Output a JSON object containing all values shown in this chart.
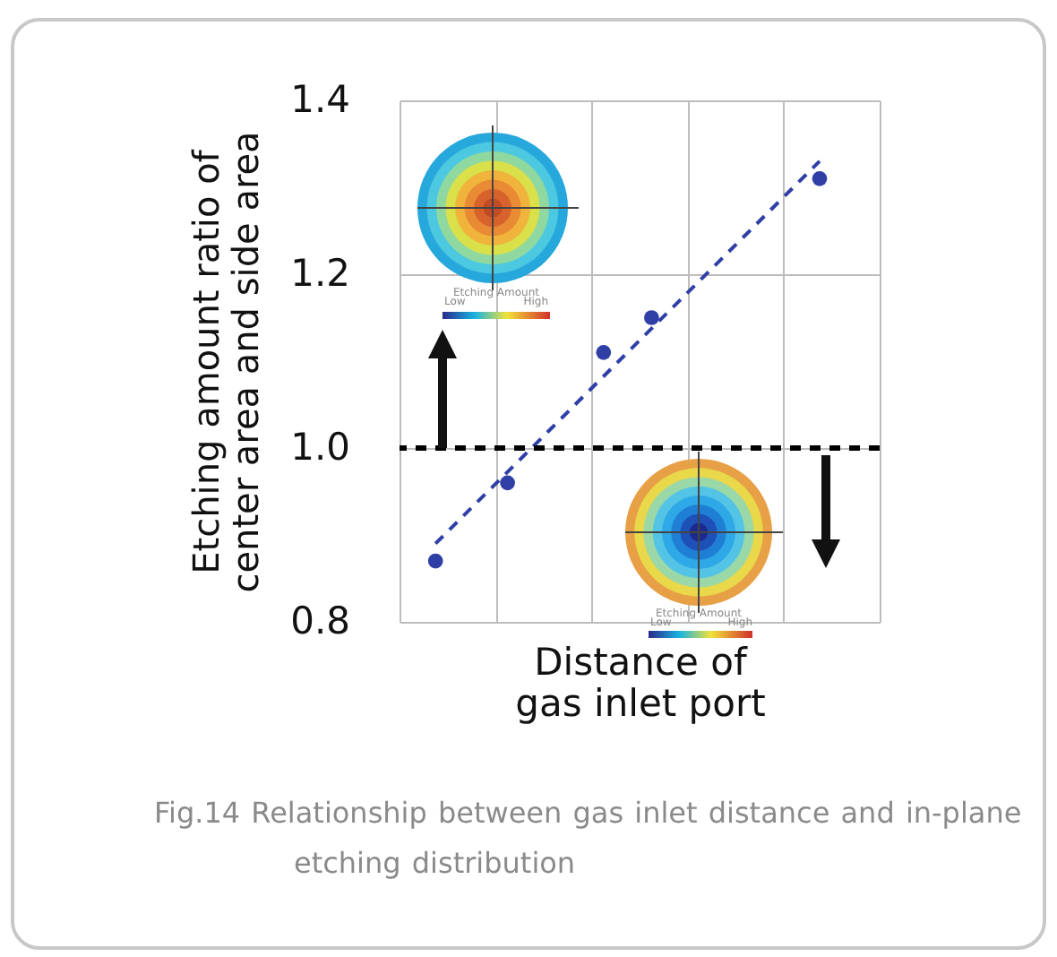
{
  "chart_data": {
    "type": "scatter",
    "xlabel": "Distance of  gas inlet port",
    "ylabel": "Etching amount ratio of center area and side area",
    "annotations": [
      "Fig.14  Relationship between gas inlet distance and in-plane etching distribution",
      "Etching Amount",
      "Low",
      "High",
      "Etching Amount",
      "Low",
      "High"
    ],
    "categories": [
      null,
      null,
      null,
      null,
      null,
      null,
      null,
      null,
      null,
      null,
      null,
      null,
      null,
      null,
      null,
      null,
      null,
      null,
      null,
      null
    ],
    "ylim": [
      0.8,
      1.4
    ],
    "yticks": [
      {
        "value": 0.8,
        "label": "0.8"
      },
      {
        "value": 1.0,
        "label": "1.0"
      },
      {
        "value": 1.2,
        "label": "1.2"
      },
      {
        "value": 1.4,
        "label": "1.4"
      }
    ],
    "tick_labels": "y",
    "grid": true,
    "series": [
      {
        "type": "scatter",
        "marker": "circle",
        "color": "#2f3fa6",
        "values": [
          null,
          0.87,
          null,
          null,
          0.96,
          null,
          null,
          null,
          1.11,
          null,
          1.15,
          null,
          null,
          null,
          null,
          null,
          null,
          1.31,
          null,
          null
        ]
      },
      {
        "type": "line",
        "marker": "none",
        "color": "#2f3fa6",
        "line_style": "dashed",
        "values": [
          null,
          0.89,
          null,
          null,
          null,
          null,
          null,
          null,
          null,
          null,
          null,
          null,
          null,
          null,
          null,
          null,
          null,
          1.33,
          null,
          null
        ]
      }
    ],
    "ref_lines": [
      {
        "axis": "y",
        "value": 1.0,
        "color": "#000000",
        "line_style": "dashed"
      }
    ]
  }
}
